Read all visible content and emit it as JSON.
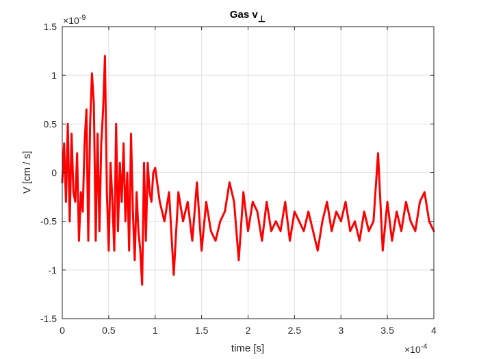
{
  "chart_data": {
    "type": "line",
    "title": "Gas v",
    "title_subscript": "⊥",
    "xlabel": "time [s]",
    "ylabel": "V [cm / s]",
    "xlim": [
      0,
      4
    ],
    "ylim": [
      -1.5,
      1.5
    ],
    "x_multiplier": {
      "base": "×10",
      "exp": "-4"
    },
    "y_multiplier": {
      "base": "×10",
      "exp": "-9"
    },
    "x_ticks": [
      "0",
      "0.5",
      "1",
      "1.5",
      "2",
      "2.5",
      "3",
      "3.5",
      "4"
    ],
    "y_ticks": [
      "-1.5",
      "-1",
      "-0.5",
      "0",
      "0.5",
      "1",
      "1.5"
    ],
    "grid": true,
    "series": [
      {
        "color": "#ff0000",
        "x": [
          0.0,
          0.02,
          0.04,
          0.06,
          0.08,
          0.1,
          0.12,
          0.14,
          0.16,
          0.18,
          0.2,
          0.22,
          0.24,
          0.26,
          0.28,
          0.3,
          0.32,
          0.34,
          0.36,
          0.38,
          0.4,
          0.42,
          0.44,
          0.46,
          0.48,
          0.5,
          0.52,
          0.54,
          0.56,
          0.58,
          0.6,
          0.62,
          0.64,
          0.66,
          0.68,
          0.7,
          0.72,
          0.74,
          0.76,
          0.78,
          0.8,
          0.82,
          0.84,
          0.86,
          0.88,
          0.9,
          0.92,
          0.94,
          0.96,
          0.98,
          1.0,
          1.05,
          1.1,
          1.15,
          1.2,
          1.25,
          1.3,
          1.35,
          1.4,
          1.45,
          1.5,
          1.55,
          1.6,
          1.65,
          1.7,
          1.75,
          1.8,
          1.85,
          1.9,
          1.95,
          2.0,
          2.05,
          2.1,
          2.15,
          2.2,
          2.25,
          2.3,
          2.35,
          2.4,
          2.45,
          2.5,
          2.55,
          2.6,
          2.65,
          2.7,
          2.75,
          2.8,
          2.85,
          2.9,
          2.95,
          3.0,
          3.05,
          3.1,
          3.15,
          3.2,
          3.25,
          3.3,
          3.35,
          3.4,
          3.45,
          3.5,
          3.55,
          3.6,
          3.65,
          3.7,
          3.75,
          3.8,
          3.85,
          3.9,
          3.95,
          4.0
        ],
        "y": [
          -0.1,
          0.3,
          -0.3,
          0.5,
          -0.5,
          0.4,
          -0.2,
          -0.3,
          0.2,
          -0.7,
          -0.2,
          -0.4,
          0.3,
          0.65,
          -0.7,
          0.5,
          1.02,
          0.7,
          -0.7,
          0.4,
          -0.6,
          0.3,
          0.65,
          1.2,
          -0.2,
          -0.8,
          0.1,
          -0.3,
          -0.8,
          0.5,
          -0.6,
          0.1,
          -0.3,
          0.3,
          -0.5,
          0.0,
          -0.8,
          0.4,
          -0.4,
          -0.9,
          -0.2,
          -0.6,
          -0.8,
          -1.15,
          0.1,
          -0.7,
          0.1,
          -0.2,
          -0.3,
          0.0,
          0.05,
          -0.3,
          -0.5,
          -0.2,
          -1.05,
          -0.2,
          -0.5,
          -0.3,
          -0.7,
          -0.1,
          -0.8,
          -0.3,
          -0.6,
          -0.7,
          -0.5,
          -0.4,
          -0.1,
          -0.3,
          -0.9,
          -0.2,
          -0.6,
          -0.3,
          -0.4,
          -0.7,
          -0.3,
          -0.6,
          -0.5,
          -0.6,
          -0.3,
          -0.7,
          -0.4,
          -0.5,
          -0.6,
          -0.4,
          -0.6,
          -0.8,
          -0.5,
          -0.3,
          -0.6,
          -0.4,
          -0.5,
          -0.3,
          -0.6,
          -0.5,
          -0.7,
          -0.4,
          -0.6,
          -0.5,
          0.2,
          -0.8,
          -0.3,
          -0.7,
          -0.4,
          -0.6,
          -0.3,
          -0.5,
          -0.6,
          -0.3,
          -0.2,
          -0.5,
          -0.6
        ]
      }
    ]
  }
}
